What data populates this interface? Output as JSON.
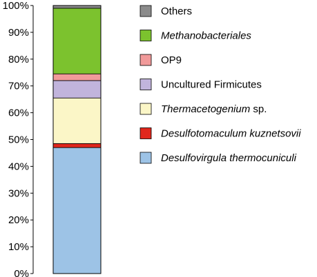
{
  "chart_data": {
    "type": "bar",
    "stacked": true,
    "normalized_percent": true,
    "categories": [
      ""
    ],
    "ylim": [
      0,
      100
    ],
    "y_ticks": [
      "0%",
      "10%",
      "20%",
      "30%",
      "40%",
      "50%",
      "60%",
      "70%",
      "80%",
      "90%",
      "100%"
    ],
    "grid": false,
    "legend_position": "right",
    "series": [
      {
        "name": "Desulfovirgula thermocuniculi",
        "values": [
          47
        ],
        "color": "#9dc3e6",
        "italic": true,
        "suffix": ""
      },
      {
        "name": "Desulfotomaculum kuznetsovii",
        "values": [
          1.5
        ],
        "color": "#e0271d",
        "italic": true,
        "suffix": ""
      },
      {
        "name": "Thermacetogenium",
        "values": [
          17
        ],
        "color": "#fbf6c7",
        "italic": true,
        "suffix": " sp."
      },
      {
        "name": "Uncultured Firmicutes",
        "values": [
          6.5
        ],
        "color": "#c1b4dc",
        "italic": false,
        "suffix": ""
      },
      {
        "name": "OP9",
        "values": [
          2.5
        ],
        "color": "#f19a9a",
        "italic": false,
        "suffix": ""
      },
      {
        "name": "Methanobacteriales",
        "values": [
          24.5
        ],
        "color": "#7cc22e",
        "italic": true,
        "suffix": ""
      },
      {
        "name": "Others",
        "values": [
          1
        ],
        "color": "#8b8b8b",
        "italic": false,
        "suffix": ""
      }
    ]
  }
}
